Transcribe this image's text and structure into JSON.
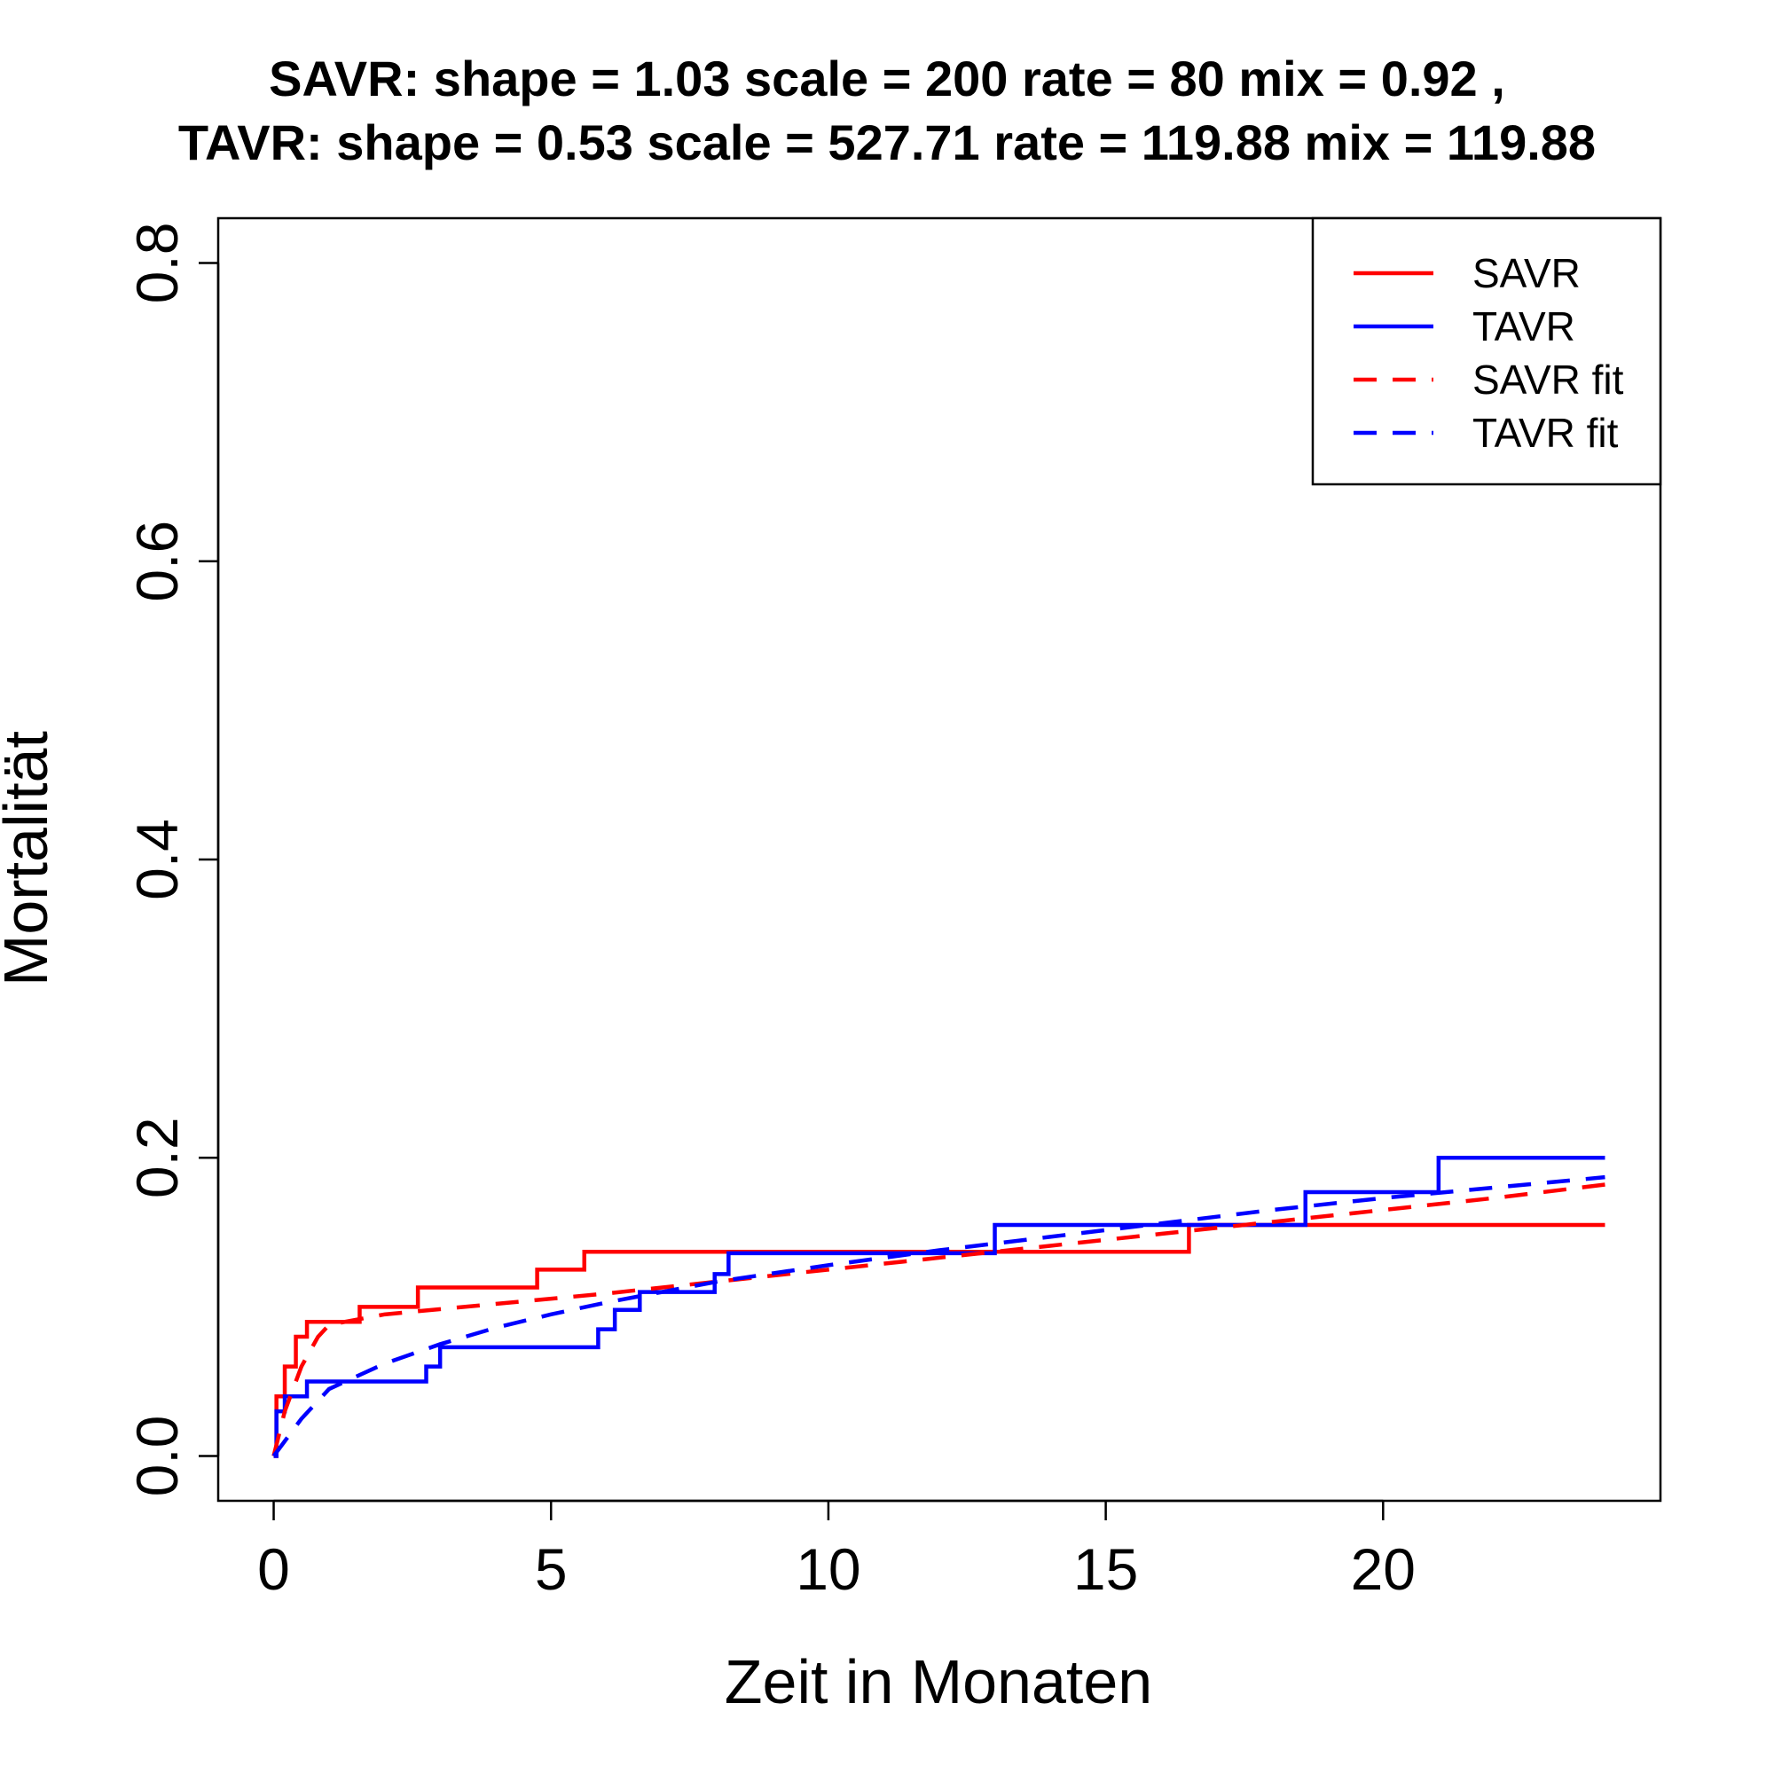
{
  "chart_data": {
    "type": "line",
    "title_lines": [
      "SAVR:  shape =  1.03   scale =  200   rate =  80   mix =  0.92 ,",
      "TAVR:  shape =  0.53   scale =  527.71   rate =  119.88   mix =  119.88"
    ],
    "xlabel": "Zeit in Monaten",
    "ylabel": "Mortalität",
    "xlim": [
      -1,
      25
    ],
    "ylim": [
      -0.03,
      0.83
    ],
    "xticks": [
      0,
      5,
      10,
      15,
      20
    ],
    "yticks": [
      0.0,
      0.2,
      0.4,
      0.6,
      0.8
    ],
    "xtick_labels": [
      "0",
      "5",
      "10",
      "15",
      "20"
    ],
    "ytick_labels": [
      "0.0",
      "0.2",
      "0.4",
      "0.6",
      "0.8"
    ],
    "grid": false,
    "legend_position": "top-right",
    "legend": [
      {
        "label": "SAVR",
        "color": "#ff0000",
        "style": "solid"
      },
      {
        "label": "TAVR",
        "color": "#0000ff",
        "style": "solid"
      },
      {
        "label": "SAVR fit",
        "color": "#ff0000",
        "style": "dashed"
      },
      {
        "label": "TAVR fit",
        "color": "#0000ff",
        "style": "dashed"
      }
    ],
    "series": [
      {
        "name": "SAVR",
        "color": "#ff0000",
        "style": "step",
        "x": [
          0,
          0.05,
          0.2,
          0.4,
          0.6,
          1.0,
          1.55,
          2.6,
          4.75,
          5.6,
          16.5,
          24
        ],
        "y": [
          0.0,
          0.04,
          0.06,
          0.08,
          0.09,
          0.09,
          0.1,
          0.113,
          0.125,
          0.137,
          0.155,
          0.155
        ]
      },
      {
        "name": "TAVR",
        "color": "#0000ff",
        "style": "step",
        "x": [
          0,
          0.05,
          0.2,
          0.6,
          2.75,
          3.0,
          5.85,
          6.15,
          6.6,
          7.95,
          8.2,
          13.0,
          18.6,
          21.0,
          24
        ],
        "y": [
          0.0,
          0.03,
          0.04,
          0.05,
          0.06,
          0.073,
          0.085,
          0.098,
          0.11,
          0.122,
          0.136,
          0.155,
          0.177,
          0.2,
          0.2
        ]
      },
      {
        "name": "SAVR fit",
        "color": "#ff0000",
        "style": "dashed",
        "x": [
          0,
          0.2,
          0.5,
          0.8,
          1.0,
          2,
          4,
          6,
          8,
          10,
          12,
          14,
          16,
          18,
          20,
          22,
          24
        ],
        "y": [
          0.0,
          0.03,
          0.06,
          0.08,
          0.088,
          0.095,
          0.102,
          0.109,
          0.117,
          0.125,
          0.133,
          0.141,
          0.149,
          0.157,
          0.165,
          0.173,
          0.182
        ]
      },
      {
        "name": "TAVR fit",
        "color": "#0000ff",
        "style": "dashed",
        "x": [
          0,
          0.2,
          0.5,
          1,
          2,
          3,
          4,
          5,
          6,
          7,
          8,
          10,
          12,
          14,
          16,
          18,
          20,
          22,
          24
        ],
        "y": [
          0.0,
          0.01,
          0.025,
          0.045,
          0.062,
          0.075,
          0.086,
          0.095,
          0.103,
          0.11,
          0.117,
          0.128,
          0.138,
          0.147,
          0.156,
          0.165,
          0.173,
          0.18,
          0.187
        ]
      }
    ]
  }
}
